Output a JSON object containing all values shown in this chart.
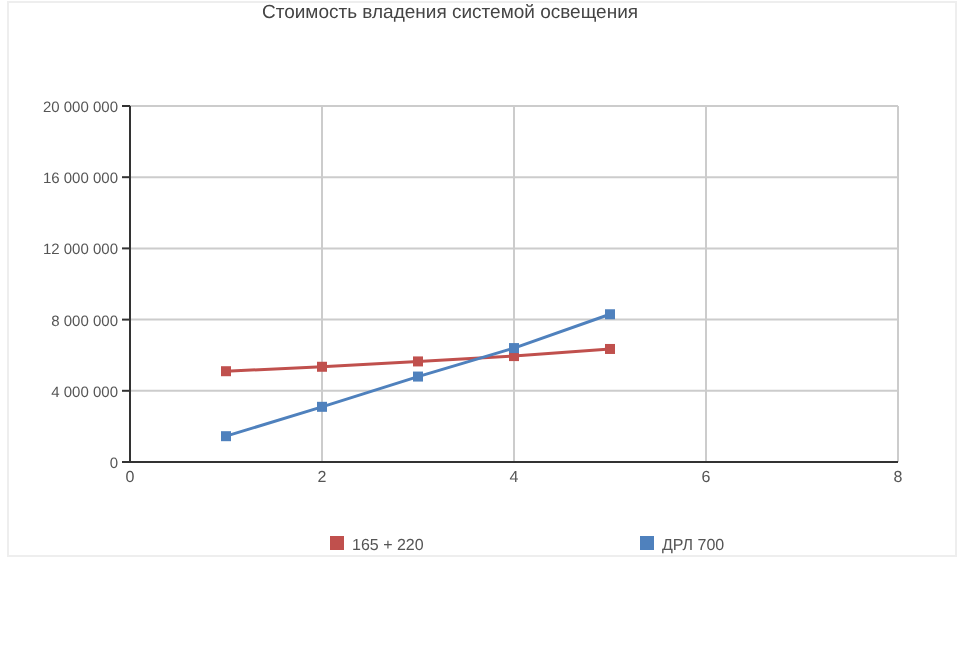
{
  "chart_data": {
    "type": "line",
    "title": "Стоимость владения системой освещения",
    "x": [
      1,
      2,
      3,
      4,
      5
    ],
    "series": [
      {
        "name": "165 + 220",
        "color": "#c0504d",
        "values": [
          5100000,
          5350000,
          5650000,
          5950000,
          6350000
        ]
      },
      {
        "name": "ДРЛ 700",
        "color": "#4f81bd",
        "values": [
          1450000,
          3100000,
          4800000,
          6400000,
          8300000
        ]
      }
    ],
    "xlim": [
      0,
      8
    ],
    "xticks": [
      0,
      2,
      4,
      6,
      8
    ],
    "ylim": [
      0,
      20000000
    ],
    "yticks": [
      {
        "value": 0,
        "label": "0"
      },
      {
        "value": 4000000,
        "label": "4 000 000"
      },
      {
        "value": 8000000,
        "label": "8 000 000"
      },
      {
        "value": 12000000,
        "label": "12 000 000"
      },
      {
        "value": 16000000,
        "label": "16 000 000"
      },
      {
        "value": 20000000,
        "label": "20 000 000"
      }
    ],
    "grid": true,
    "legend": "bottom",
    "marker": "square",
    "line_style": "solid"
  }
}
